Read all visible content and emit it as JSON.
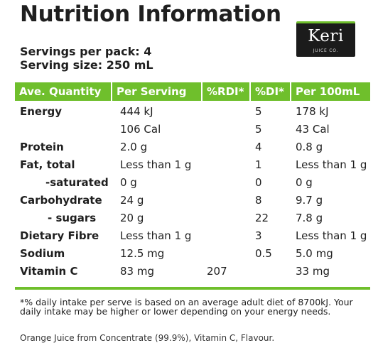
{
  "title": "Nutrition Information",
  "logo": {
    "brand": "Keri",
    "sub": "JUICE CO."
  },
  "servings": {
    "per_pack": "Servings per pack: 4",
    "size": "Serving size: 250 mL"
  },
  "colors": {
    "accent": "#6fbf2c"
  },
  "table": {
    "headers": [
      "Ave. Quantity",
      "Per Serving",
      "%RDI*",
      "%DI*",
      "Per 100mL"
    ],
    "rows": [
      [
        "Energy",
        "444 kJ",
        "",
        "5",
        "178 kJ"
      ],
      [
        "",
        "106 Cal",
        "",
        "5",
        "43 Cal"
      ],
      [
        "Protein",
        "2.0 g",
        "",
        "4",
        "0.8 g"
      ],
      [
        "Fat, total",
        "Less than 1 g",
        "",
        "1",
        "Less than 1 g"
      ],
      [
        "-saturated",
        "0 g",
        "",
        "0",
        "0 g"
      ],
      [
        "Carbohydrate",
        "24 g",
        "",
        "8",
        "9.7 g"
      ],
      [
        "- sugars",
        "20 g",
        "",
        "22",
        "7.8 g"
      ],
      [
        "Dietary Fibre",
        "Less than 1 g",
        "",
        "3",
        "Less than 1 g"
      ],
      [
        "Sodium",
        "12.5 mg",
        "",
        "0.5",
        "5.0 mg"
      ],
      [
        "Vitamin C",
        "83 mg",
        "207",
        "",
        "33 mg"
      ]
    ]
  },
  "footnote": "*% daily intake per serve is based on an average adult diet of 8700kJ. Your daily intake may be higher or lower depending on your energy needs.",
  "ingredients": "Orange Juice from Concentrate (99.9%), Vitamin C, Flavour."
}
